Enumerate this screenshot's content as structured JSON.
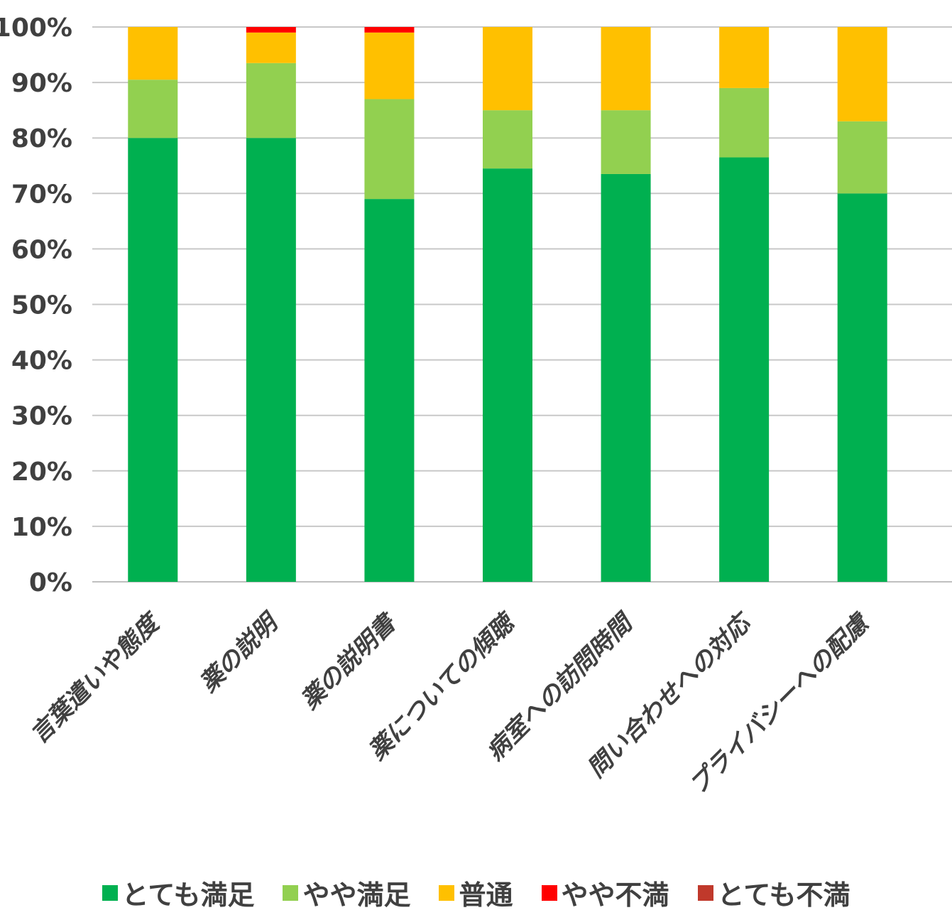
{
  "chart_data": {
    "type": "bar",
    "stacked": true,
    "percent_stacked": true,
    "categories": [
      "言葉遣いや態度",
      "薬の説明",
      "薬の説明書",
      "薬についての傾聴",
      "病室への訪問時間",
      "問い合わせへの対応",
      "プライバシーへの配慮"
    ],
    "series": [
      {
        "name": "とても満足",
        "color": "#00b050",
        "values": [
          80,
          80,
          69,
          74.5,
          73.5,
          76.5,
          70
        ]
      },
      {
        "name": "やや満足",
        "color": "#92d050",
        "values": [
          10.5,
          13.5,
          18,
          10.5,
          11.5,
          12.5,
          13
        ]
      },
      {
        "name": "普通",
        "color": "#ffc000",
        "values": [
          9.5,
          5.5,
          12,
          15,
          15,
          11,
          17
        ]
      },
      {
        "name": "やや不満",
        "color": "#ff0000",
        "values": [
          0,
          1,
          1,
          0,
          0,
          0,
          0
        ]
      },
      {
        "name": "とても不満",
        "color": "#c0392b",
        "values": [
          0,
          0,
          0,
          0,
          0,
          0,
          0
        ]
      }
    ],
    "y_ticks": [
      "0%",
      "10%",
      "20%",
      "30%",
      "40%",
      "50%",
      "60%",
      "70%",
      "80%",
      "90%",
      "100%"
    ],
    "ylim": [
      0,
      100
    ],
    "grid": true,
    "legend_position": "bottom"
  }
}
